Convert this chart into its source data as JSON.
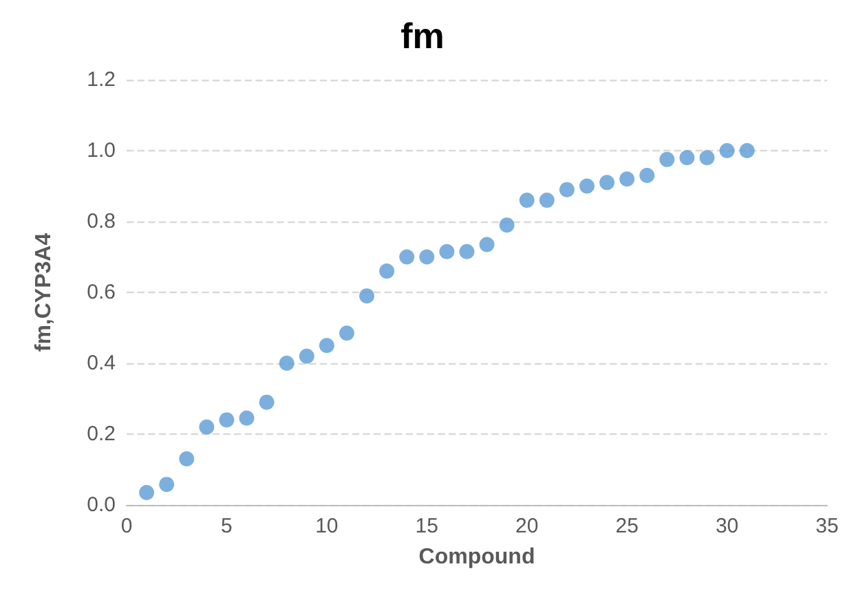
{
  "chart_data": {
    "type": "scatter",
    "title": "fm",
    "xlabel": "Compound",
    "ylabel": "fm,CYP3A4",
    "series": [
      {
        "color": "#5b9bd5",
        "x": [
          1,
          2,
          3,
          4,
          5,
          6,
          7,
          8,
          9,
          10,
          11,
          12,
          13,
          14,
          15,
          16,
          17,
          18,
          19,
          20,
          21,
          22,
          23,
          24,
          25,
          26,
          27,
          28,
          29,
          30,
          31
        ],
        "values": [
          0.035,
          0.058,
          0.13,
          0.22,
          0.24,
          0.245,
          0.29,
          0.4,
          0.42,
          0.45,
          0.485,
          0.59,
          0.66,
          0.7,
          0.7,
          0.715,
          0.715,
          0.735,
          0.79,
          0.86,
          0.86,
          0.89,
          0.9,
          0.91,
          0.92,
          0.93,
          0.975,
          0.98,
          0.98,
          1.0,
          1.0
        ]
      }
    ],
    "xlim": [
      0,
      35
    ],
    "xticks": [
      0,
      5,
      10,
      15,
      20,
      25,
      30,
      35
    ],
    "ylim": [
      0,
      1.2
    ],
    "yticks": [
      {
        "value": 0,
        "label": "0.0"
      },
      {
        "value": 0.2,
        "label": "0.2"
      },
      {
        "value": 0.4,
        "label": "0.4"
      },
      {
        "value": 0.6,
        "label": "0.6"
      },
      {
        "value": 0.8,
        "label": "0.8"
      },
      {
        "value": 1.0,
        "label": "1.0"
      },
      {
        "value": 1.2,
        "label": "1.2"
      }
    ],
    "grid": "y",
    "marker": "circle"
  }
}
